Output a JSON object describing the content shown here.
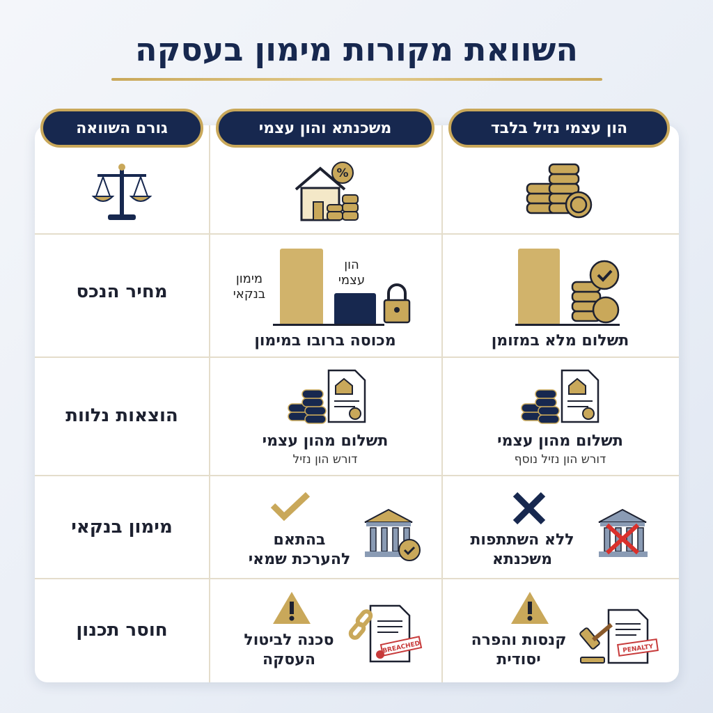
{
  "title": "השוואת מקורות מימון בעסקה",
  "columns": [
    "גורם השוואה",
    "משכנתא והון עצמי",
    "הון עצמי נזיל בלבד"
  ],
  "rows": [
    {
      "label": "מחיר הנכס",
      "mortgage": {
        "bar_labels": [
          [
            "מימון",
            "בנקאי"
          ],
          [
            "הון",
            "עצמי"
          ]
        ],
        "caption": "מכוסה ברובו במימון"
      },
      "liquid": {
        "caption": "תשלום מלא במזומן"
      }
    },
    {
      "label": "הוצאות נלוות",
      "mortgage": {
        "caption": "תשלום מהון עצמי",
        "sub": "דורש הון נזיל"
      },
      "liquid": {
        "caption": "תשלום מהון עצמי",
        "sub": "דורש הון נזיל נוסף"
      }
    },
    {
      "label": "מימון בנקאי",
      "mortgage": {
        "lines": [
          "בהתאם",
          "להערכת שמאי"
        ]
      },
      "liquid": {
        "lines": [
          "ללא השתתפות",
          "משכנתא"
        ]
      }
    },
    {
      "label": "חוסר תכנון",
      "mortgage": {
        "lines": [
          "סכנה לביטול",
          "העסקה"
        ],
        "stamp": "BREACHED"
      },
      "liquid": {
        "lines": [
          "קנסות והפרה",
          "יסודית"
        ],
        "stamp": "PENALTY"
      }
    }
  ]
}
